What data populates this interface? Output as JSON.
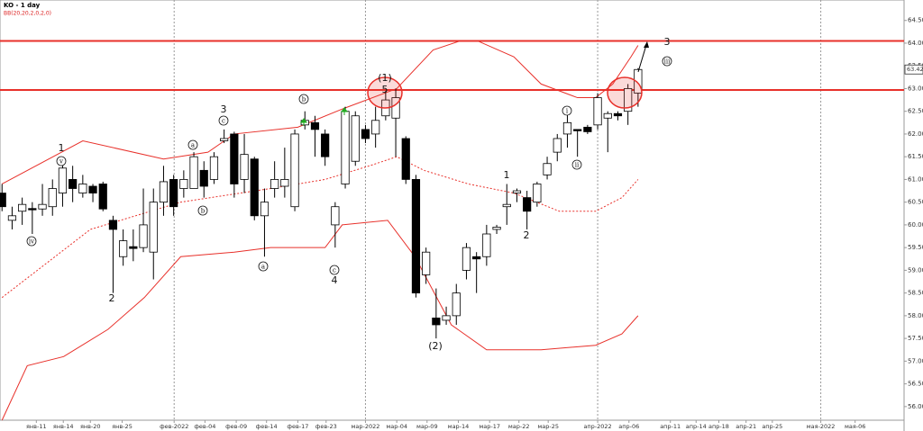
{
  "chart_data": {
    "type": "candlestick",
    "title": "KO - 1 day",
    "subtitle": "BB(20,20,2,0,2,0)",
    "xlim": [
      -0.2,
      89.35
    ],
    "ylim": [
      55.7,
      64.95
    ],
    "yticks": [
      {
        "value": 56,
        "label": "56.00"
      },
      {
        "value": 56.5,
        "label": "56.50"
      },
      {
        "value": 57,
        "label": "57.00"
      },
      {
        "value": 57.5,
        "label": "57.50"
      },
      {
        "value": 58,
        "label": "58.00"
      },
      {
        "value": 58.5,
        "label": "58.50"
      },
      {
        "value": 59,
        "label": "59.00"
      },
      {
        "value": 59.5,
        "label": "59.50"
      },
      {
        "value": 60,
        "label": "60.00"
      },
      {
        "value": 60.5,
        "label": "60.50"
      },
      {
        "value": 61,
        "label": "61.00"
      },
      {
        "value": 61.5,
        "label": "61.50"
      },
      {
        "value": 62,
        "label": "62.00"
      },
      {
        "value": 62.5,
        "label": "62.50"
      },
      {
        "value": 63,
        "label": "63.00"
      },
      {
        "value": 63.5,
        "label": "63.50"
      },
      {
        "value": 64,
        "label": "64.00"
      },
      {
        "value": 64.5,
        "label": "64.50"
      }
    ],
    "xticks": [
      {
        "value": 3.4,
        "label": "янв-11"
      },
      {
        "value": 6.07,
        "label": "янв-14"
      },
      {
        "value": 8.75,
        "label": "янв-20"
      },
      {
        "value": 11.9,
        "label": "янв-25"
      },
      {
        "value": 17.05,
        "label": "фев-2022"
      },
      {
        "value": 20.1,
        "label": "фев-04"
      },
      {
        "value": 23.2,
        "label": "фев-09"
      },
      {
        "value": 26.2,
        "label": "фев-14"
      },
      {
        "value": 29.3,
        "label": "фев-17"
      },
      {
        "value": 32.1,
        "label": "фев-23"
      },
      {
        "value": 36.0,
        "label": "мар-2022"
      },
      {
        "value": 39.1,
        "label": "мар-04"
      },
      {
        "value": 42.1,
        "label": "мар-09"
      },
      {
        "value": 45.2,
        "label": "мар-14"
      },
      {
        "value": 48.3,
        "label": "мар-17"
      },
      {
        "value": 51.2,
        "label": "мар-22"
      },
      {
        "value": 54.1,
        "label": "мар-25"
      },
      {
        "value": 59.0,
        "label": "апр-2022"
      },
      {
        "value": 62.1,
        "label": "апр-06"
      },
      {
        "value": 66.2,
        "label": "апр-11"
      },
      {
        "value": 68.75,
        "label": "апр-14"
      },
      {
        "value": 71.0,
        "label": "апр-18"
      },
      {
        "value": 73.7,
        "label": "апр-21"
      },
      {
        "value": 76.3,
        "label": "апр-25"
      },
      {
        "value": 81.1,
        "label": "мая-2022"
      },
      {
        "value": 84.5,
        "label": "мая-06"
      }
    ],
    "candles": {
      "o": [
        60.7,
        60.1,
        60.3,
        60.36,
        60.35,
        60.4,
        60.7,
        61.0,
        60.7,
        60.85,
        60.9,
        60.1,
        59.3,
        59.52,
        59.5,
        59.4,
        60.5,
        61.0,
        60.8,
        60.8,
        61.2,
        61.0,
        61.85,
        62.0,
        61.0,
        61.45,
        60.2,
        60.8,
        60.85,
        60.4,
        62.2,
        62.25,
        62.0,
        60.0,
        60.9,
        61.4,
        62.1,
        62.0,
        62.4,
        62.35,
        61.9,
        61.0,
        58.9,
        57.95,
        57.9,
        58.0,
        59.0,
        59.3,
        59.3,
        59.9,
        60.4,
        60.7,
        60.6,
        60.5,
        61.1,
        61.6,
        62.0,
        62.1,
        62.15,
        62.2,
        62.35,
        62.45,
        62.5,
        62.9
      ],
      "h": [
        60.9,
        60.4,
        60.6,
        60.5,
        60.9,
        61.0,
        61.4,
        61.3,
        61.1,
        60.9,
        60.95,
        60.2,
        59.9,
        59.9,
        60.8,
        60.8,
        61.3,
        61.1,
        61.2,
        61.6,
        61.4,
        61.6,
        62.1,
        62.05,
        62.0,
        61.5,
        60.8,
        61.4,
        61.7,
        62.1,
        62.5,
        62.4,
        62.1,
        60.5,
        62.6,
        62.5,
        62.2,
        62.6,
        62.95,
        63.0,
        61.95,
        61.1,
        59.5,
        58.6,
        58.2,
        58.7,
        59.6,
        59.4,
        60.0,
        60.0,
        60.9,
        60.8,
        60.75,
        60.95,
        61.5,
        62.0,
        62.5,
        62.1,
        62.2,
        62.9,
        62.5,
        62.5,
        63.1,
        63.45
      ],
      "l": [
        60.3,
        59.9,
        60.0,
        59.8,
        60.2,
        60.2,
        60.4,
        60.5,
        60.6,
        60.5,
        60.3,
        58.5,
        59.1,
        59.2,
        59.4,
        58.8,
        60.2,
        60.2,
        60.6,
        60.8,
        60.6,
        60.9,
        61.8,
        60.6,
        60.7,
        60.1,
        59.3,
        60.6,
        60.6,
        60.3,
        62.1,
        61.5,
        61.3,
        59.5,
        60.8,
        61.3,
        61.8,
        61.7,
        62.3,
        61.5,
        60.9,
        58.4,
        58.7,
        57.5,
        57.8,
        57.8,
        58.8,
        58.5,
        59.1,
        59.8,
        60.0,
        60.5,
        59.9,
        60.4,
        61.0,
        61.4,
        61.7,
        61.5,
        62.0,
        62.1,
        61.6,
        62.3,
        62.2,
        62.6
      ],
      "c": [
        60.4,
        60.2,
        60.45,
        60.34,
        60.45,
        60.8,
        61.25,
        60.8,
        60.9,
        60.7,
        60.35,
        59.9,
        59.65,
        59.48,
        60.0,
        60.5,
        60.95,
        60.4,
        61.0,
        61.5,
        60.85,
        61.5,
        61.9,
        60.9,
        61.55,
        60.2,
        60.5,
        61.0,
        61.0,
        62.0,
        62.3,
        62.1,
        61.5,
        60.4,
        62.5,
        62.4,
        61.9,
        62.3,
        62.75,
        62.8,
        61.0,
        58.5,
        59.4,
        57.8,
        58.0,
        58.5,
        59.5,
        59.25,
        59.8,
        59.95,
        60.45,
        60.75,
        60.3,
        60.9,
        61.35,
        61.9,
        62.25,
        62.08,
        62.05,
        62.8,
        62.45,
        62.4,
        63.0,
        63.42
      ]
    },
    "bands": [
      {
        "name": "upper",
        "color": "#e8302a",
        "dash": false,
        "x": [
          0,
          8,
          16,
          20.4,
          23,
          29.3,
          33.7,
          39.1,
          42.7,
          45.4,
          47.1,
          50.7,
          53.4,
          57,
          58.8,
          60.5,
          62.3,
          63
        ],
        "values": [
          60.9,
          61.85,
          61.45,
          61.6,
          62.0,
          62.15,
          62.55,
          63.0,
          63.85,
          64.05,
          64.05,
          63.7,
          63.1,
          62.8,
          62.8,
          63.1,
          63.7,
          63.95
        ]
      },
      {
        "name": "middle",
        "color": "#e8302a",
        "dash": true,
        "x": [
          0,
          8.75,
          17.7,
          26.6,
          32,
          36.4,
          39.1,
          41.8,
          46.2,
          50.7,
          55.2,
          58.8,
          61.4,
          63
        ],
        "values": [
          58.4,
          59.9,
          60.5,
          60.8,
          61.0,
          61.3,
          61.5,
          61.2,
          60.9,
          60.7,
          60.3,
          60.3,
          60.6,
          61.0
        ]
      },
      {
        "name": "lower",
        "color": "#e8302a",
        "dash": false,
        "x": [
          0,
          2.5,
          6.1,
          10.5,
          14.1,
          17.7,
          23,
          26.6,
          32,
          33.7,
          38.2,
          40.9,
          44.5,
          48,
          53.4,
          58.8,
          61.4,
          63
        ],
        "values": [
          55.7,
          56.9,
          57.1,
          57.7,
          58.4,
          59.3,
          59.4,
          59.5,
          59.5,
          60.0,
          60.1,
          59.3,
          57.8,
          57.25,
          57.25,
          57.35,
          57.6,
          58.0
        ]
      }
    ],
    "levels": [
      {
        "value": 64.05,
        "color": "#e8302a"
      },
      {
        "value": 62.97,
        "color": "#e8302a"
      }
    ],
    "last_price": 63.42,
    "annotations": [
      "1",
      "v",
      "iv",
      "2",
      "a",
      "b",
      "3",
      "c",
      "a",
      "b",
      "c",
      "4",
      "(1)",
      "5",
      "(2)",
      "1",
      "2",
      "i",
      "ii",
      "3",
      "iii"
    ]
  }
}
